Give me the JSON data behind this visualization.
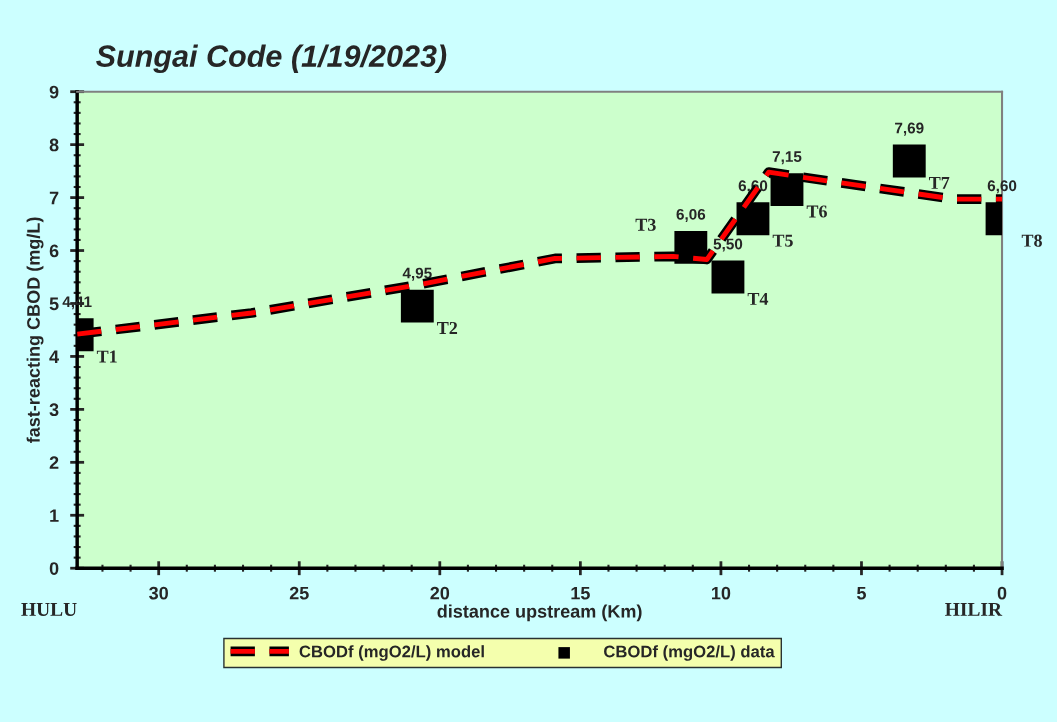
{
  "chart_data": {
    "type": "line",
    "title": "Sungai Code (1/19/2023)",
    "xlabel": "distance upstream (Km)",
    "ylabel": "fast-reacting CBOD (mg/L)",
    "xlim": [
      32.9,
      0
    ],
    "xticks": [
      30,
      25,
      20,
      15,
      10,
      5,
      0
    ],
    "ylim": [
      0,
      9
    ],
    "yticks": [
      0,
      1,
      2,
      3,
      4,
      5,
      6,
      7,
      8,
      9
    ],
    "grid": false,
    "legend": "bottom",
    "series": [
      {
        "name": "CBODf (mgO2/L) model",
        "type": "line",
        "color": "#ff0000",
        "line_style": "dashed",
        "marker": "none",
        "x": [
          32.9,
          26.7,
          20.8,
          15.9,
          11.7,
          10.5,
          8.3,
          7.3,
          1.7,
          0.1,
          0
        ],
        "values": [
          4.42,
          4.82,
          5.35,
          5.85,
          5.89,
          5.83,
          7.48,
          7.4,
          6.97,
          6.97,
          6.97
        ]
      },
      {
        "name": "CBODf (mgO2/L) data",
        "type": "scatter",
        "color": "#000000",
        "marker": "square",
        "x": [
          32.9,
          20.8,
          11.07,
          9.75,
          8.86,
          7.65,
          3.3,
          0
        ],
        "values": [
          4.41,
          4.95,
          6.06,
          5.5,
          6.6,
          7.15,
          7.69,
          6.6
        ],
        "value_labels": [
          "4,41",
          "4,95",
          "6,06",
          "5,50",
          "6,60",
          "7,15",
          "7,69",
          "6,60"
        ]
      }
    ],
    "annotations": [
      {
        "text": "T1",
        "x": 32.9,
        "y": 4.41
      },
      {
        "text": "T2",
        "x": 20.8,
        "y": 4.95
      },
      {
        "text": "T3",
        "x": 11.07,
        "y": 6.06
      },
      {
        "text": "T4",
        "x": 9.75,
        "y": 5.5
      },
      {
        "text": "T5",
        "x": 8.86,
        "y": 6.6
      },
      {
        "text": "T6",
        "x": 7.65,
        "y": 7.15
      },
      {
        "text": "T7",
        "x": 3.3,
        "y": 7.69
      },
      {
        "text": "T8",
        "x": 0,
        "y": 6.6
      },
      "HULU",
      "HILIR"
    ]
  }
}
